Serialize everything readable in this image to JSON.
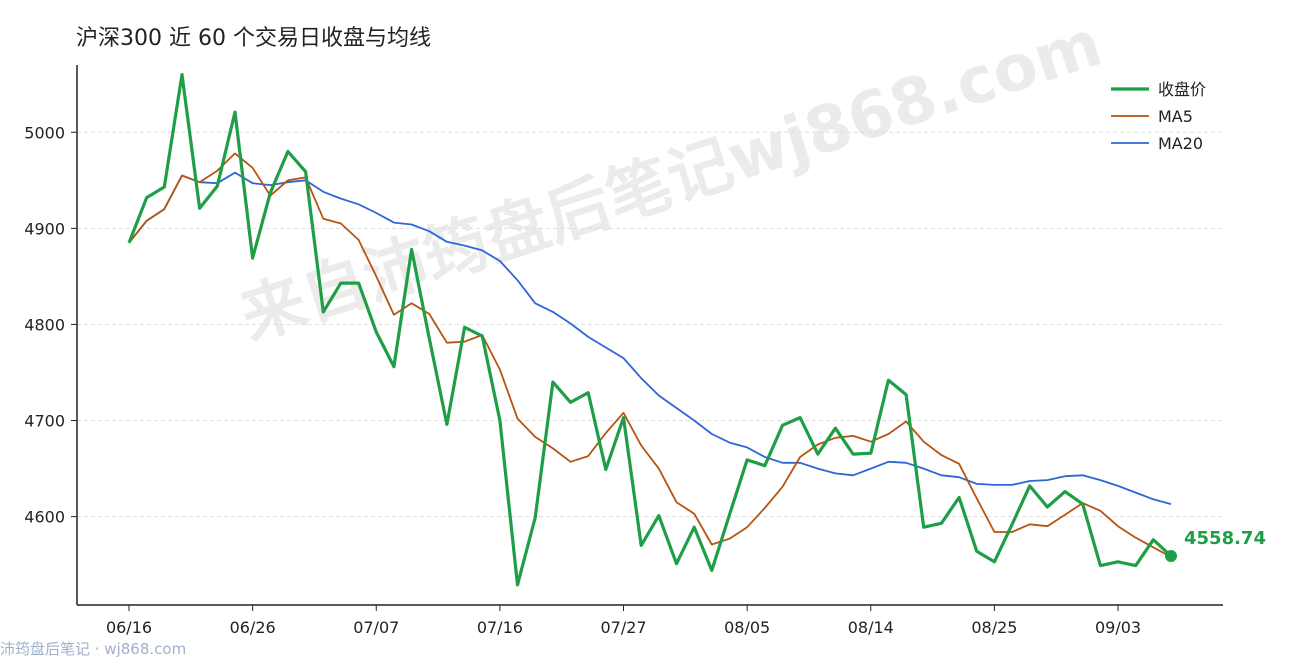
{
  "title": "沪深300 近 60 个交易日收盘与均线",
  "watermark": "来自沛筠盘后笔记wj868.com",
  "footer": "沛筠盘后笔记 · wj868.com",
  "chart_data": {
    "type": "line",
    "title": "沪深300 近 60 个交易日收盘与均线",
    "xlabel": "",
    "ylabel": "",
    "ylim": [
      4508,
      5070
    ],
    "y_ticks": [
      4600,
      4700,
      4800,
      4900,
      5000
    ],
    "x_tick_labels": [
      "06/16",
      "06/26",
      "07/07",
      "07/16",
      "07/27",
      "08/05",
      "08/14",
      "08/25",
      "09/03"
    ],
    "x_tick_index": [
      0,
      7,
      14,
      21,
      28,
      35,
      42,
      49,
      56
    ],
    "grid": "horizontal dashed",
    "legend_position": "top-right",
    "last_value_label": "4558.74",
    "series": [
      {
        "name": "收盘价",
        "color": "#1f9e48",
        "values": [
          4885,
          4932,
          4943,
          5060,
          4921,
          4944,
          5021,
          4869,
          4937,
          4980,
          4959,
          4813,
          4843,
          4843,
          4792,
          4756,
          4878,
          4786,
          4696,
          4797,
          4788,
          4700,
          4529,
          4599,
          4740,
          4719,
          4729,
          4649,
          4703,
          4570,
          4601,
          4551,
          4589,
          4544,
          4602,
          4659,
          4653,
          4695,
          4703,
          4665,
          4692,
          4665,
          4666,
          4742,
          4727,
          4589,
          4593,
          4620,
          4564,
          4553,
          4592,
          4632,
          4610,
          4626,
          4613,
          4549,
          4553,
          4549,
          4576,
          4559
        ]
      },
      {
        "name": "MA5",
        "color": "#b7540f",
        "values": [
          4885,
          4908,
          4920,
          4955,
          4948,
          4960,
          4978,
          4963,
          4934,
          4950,
          4953,
          4910,
          4905,
          4888,
          4850,
          4810,
          4822,
          4811,
          4781,
          4782,
          4789,
          4753,
          4702,
          4683,
          4671,
          4657,
          4663,
          4687,
          4708,
          4674,
          4650,
          4615,
          4603,
          4571,
          4577,
          4589,
          4609,
          4631,
          4662,
          4675,
          4682,
          4684,
          4678,
          4686,
          4699,
          4678,
          4664,
          4655,
          4619,
          4584,
          4584,
          4592,
          4590,
          4602,
          4614,
          4606,
          4590,
          4578,
          4568,
          4558
        ]
      },
      {
        "name": "MA20",
        "color": "#2f66d6",
        "values": [
          4885,
          4908,
          4920,
          4955,
          4948,
          4947,
          4958,
          4947,
          4945,
          4948,
          4950,
          4938,
          4931,
          4925,
          4916,
          4906,
          4904,
          4897,
          4886,
          4882,
          4877,
          4866,
          4846,
          4822,
          4813,
          4801,
          4787,
          4776,
          4765,
          4744,
          4726,
          4713,
          4700,
          4686,
          4677,
          4672,
          4662,
          4656,
          4656,
          4650,
          4645,
          4643,
          4650,
          4657,
          4656,
          4650,
          4643,
          4641,
          4634,
          4633,
          4633,
          4637,
          4638,
          4642,
          4643,
          4638,
          4632,
          4625,
          4618,
          4613
        ]
      }
    ]
  }
}
